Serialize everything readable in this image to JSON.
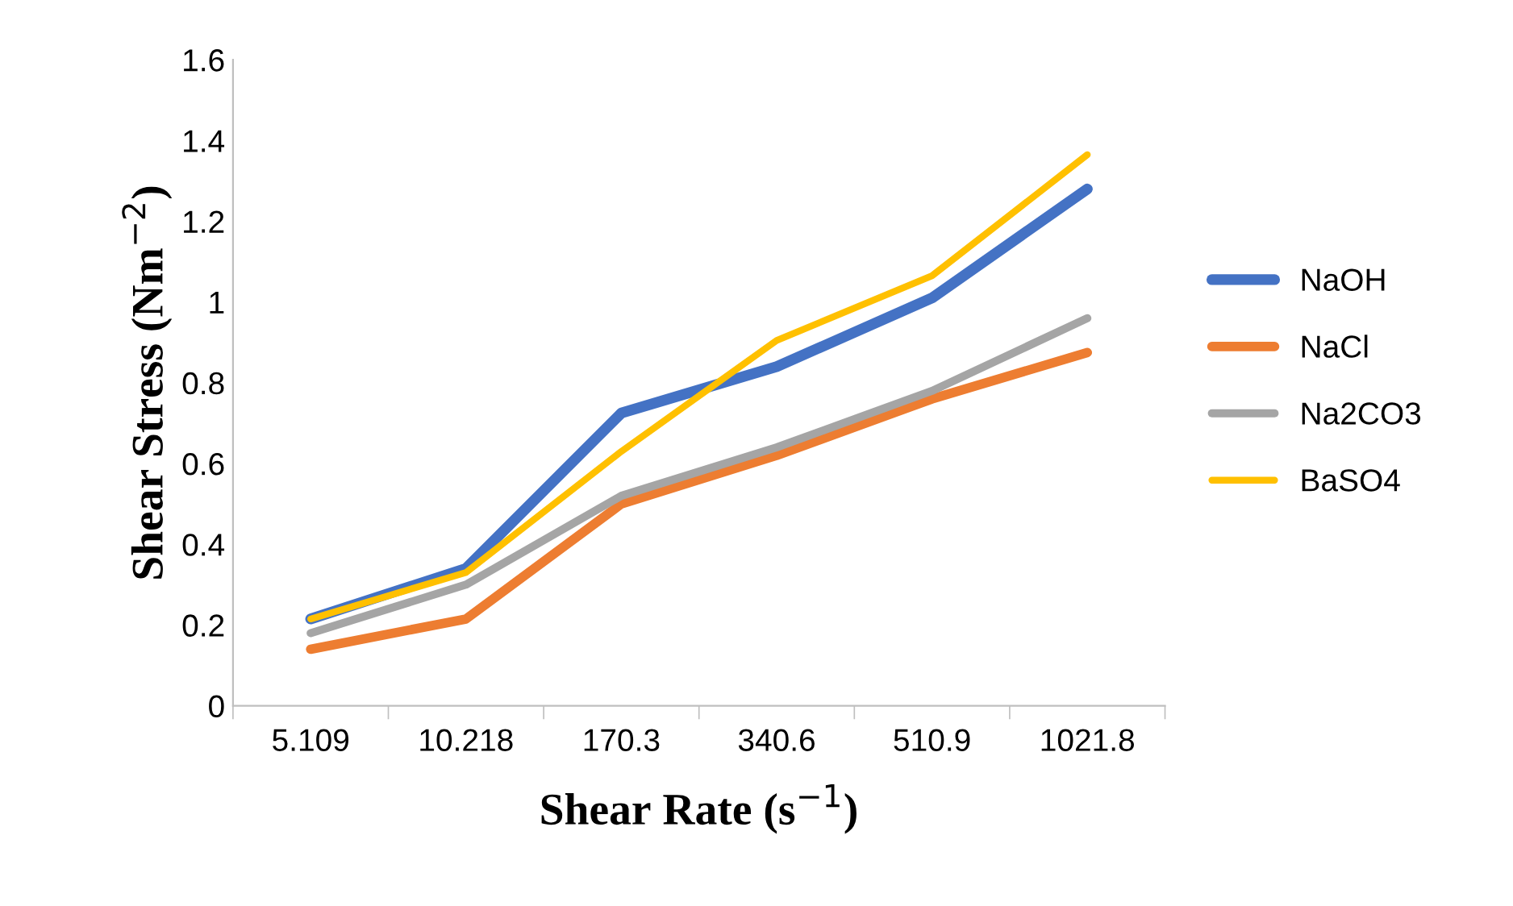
{
  "chart_data": {
    "type": "line",
    "xlabel": "Shear Rate (s$^{−1}$)",
    "ylabel": "Shear Stress (Nm$^{−2}$)",
    "categories": [
      "5.109",
      "10.218",
      "170.3",
      "340.6",
      "510.9",
      "1021.8"
    ],
    "series": [
      {
        "name": "NaOH",
        "color": "#4472c4",
        "values": [
          0.215,
          0.34,
          0.725,
          0.84,
          1.01,
          1.28
        ]
      },
      {
        "name": "NaCl",
        "color": "#ed7d31",
        "values": [
          0.14,
          0.215,
          0.5,
          0.62,
          0.76,
          0.875
        ]
      },
      {
        "name": "Na2CO3",
        "color": "#a5a5a5",
        "values": [
          0.18,
          0.3,
          0.52,
          0.64,
          0.78,
          0.96
        ]
      },
      {
        "name": "BaSO4",
        "color": "#ffc000",
        "values": [
          0.215,
          0.33,
          0.63,
          0.905,
          1.065,
          1.365
        ]
      }
    ],
    "ylim": [
      0,
      1.6
    ],
    "yticks": [
      0,
      0.2,
      0.4,
      0.6,
      0.8,
      1,
      1.2,
      1.4,
      1.6
    ],
    "grid": false,
    "legend": "right",
    "marker": "none",
    "line_style": "solid"
  }
}
